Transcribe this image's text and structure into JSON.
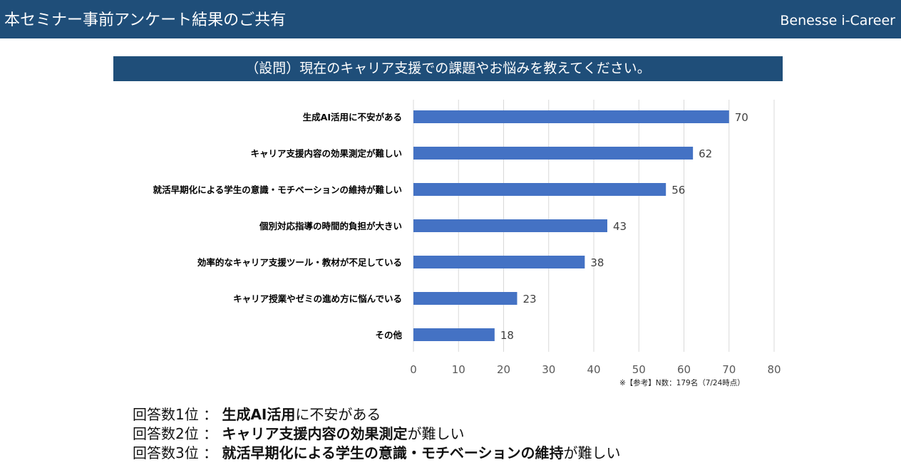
{
  "header": {
    "title": "本セミナー事前アンケート結果のご共有",
    "brand": "Benesse i-Career"
  },
  "question": "（設問）現在のキャリア支援での課題やお悩みを教えてください。",
  "chart_data": {
    "type": "bar",
    "orientation": "horizontal",
    "categories": [
      "生成AI活用に不安がある",
      "キャリア支援内容の効果測定が難しい",
      "就活早期化による学生の意識・モチベーションの維持が難しい",
      "個別対応指導の時間的負担が大きい",
      "効率的なキャリア支援ツール・教材が不足している",
      "キャリア授業やゼミの進め方に悩んでいる",
      "その他"
    ],
    "values": [
      70,
      62,
      56,
      43,
      38,
      23,
      18
    ],
    "xlim": [
      0,
      80
    ],
    "xticks": [
      "0",
      "10",
      "20",
      "30",
      "40",
      "50",
      "60",
      "70",
      "80"
    ],
    "grid": true,
    "bar_color": "#4472c4"
  },
  "note": "※【参考】N数：179名（7/24時点）",
  "summary": [
    {
      "rank": "回答数1位",
      "sep": "：",
      "bold": "生成AI活用",
      "rest": "に不安がある"
    },
    {
      "rank": "回答数2位",
      "sep": "：",
      "bold": "キャリア支援内容の効果測定",
      "rest": "が難しい"
    },
    {
      "rank": "回答数3位",
      "sep": "：",
      "bold": "就活早期化による学生の意識・モチベーションの維持",
      "rest": "が難しい"
    }
  ]
}
